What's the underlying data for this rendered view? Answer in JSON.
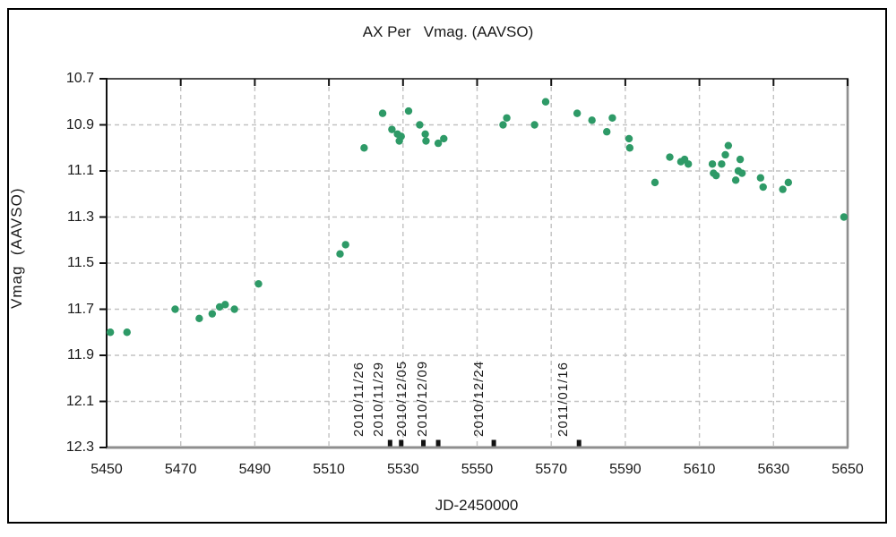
{
  "window": {
    "background": "#ffffff",
    "border_color": "#000000"
  },
  "title": "AX Per   Vmag. (AAVSO)",
  "chart_data": {
    "type": "scatter",
    "title": "AX Per   Vmag. (AAVSO)",
    "xlabel": "JD-2450000",
    "ylabel": "Vmag  (AAVSO)",
    "xlim": [
      5450,
      5650
    ],
    "ylim": [
      10.7,
      12.3
    ],
    "y_axis_inverted_magnitude": true,
    "xticks": [
      5450,
      5470,
      5490,
      5510,
      5530,
      5550,
      5570,
      5590,
      5610,
      5630,
      5650
    ],
    "yticks": [
      10.7,
      10.9,
      11.1,
      11.3,
      11.5,
      11.7,
      11.9,
      12.1,
      12.3
    ],
    "grid": "dashed",
    "grid_color": "#c2c2c2",
    "axis_color": "#111111",
    "axis_gray": "#8e8e8e",
    "marker_color": "#2E9A67",
    "legend": null,
    "points": [
      [
        5451.0,
        11.8
      ],
      [
        5455.5,
        11.8
      ],
      [
        5468.5,
        11.7
      ],
      [
        5475.0,
        11.74
      ],
      [
        5478.5,
        11.72
      ],
      [
        5480.5,
        11.69
      ],
      [
        5482.0,
        11.68
      ],
      [
        5484.5,
        11.7
      ],
      [
        5491.0,
        11.59
      ],
      [
        5513.0,
        11.46
      ],
      [
        5514.5,
        11.42
      ],
      [
        5519.5,
        11.0
      ],
      [
        5524.5,
        10.85
      ],
      [
        5527.0,
        10.92
      ],
      [
        5528.5,
        10.94
      ],
      [
        5529.0,
        10.97
      ],
      [
        5529.5,
        10.95
      ],
      [
        5531.5,
        10.84
      ],
      [
        5534.5,
        10.9
      ],
      [
        5536.0,
        10.94
      ],
      [
        5536.2,
        10.97
      ],
      [
        5539.5,
        10.98
      ],
      [
        5541.0,
        10.96
      ],
      [
        5557.0,
        10.9
      ],
      [
        5558.0,
        10.87
      ],
      [
        5565.5,
        10.9
      ],
      [
        5568.5,
        10.8
      ],
      [
        5577.0,
        10.85
      ],
      [
        5581.0,
        10.88
      ],
      [
        5585.0,
        10.93
      ],
      [
        5586.5,
        10.87
      ],
      [
        5591.0,
        10.96
      ],
      [
        5591.2,
        11.0
      ],
      [
        5598.0,
        11.15
      ],
      [
        5602.0,
        11.04
      ],
      [
        5605.0,
        11.06
      ],
      [
        5606.0,
        11.05
      ],
      [
        5607.0,
        11.07
      ],
      [
        5613.5,
        11.07
      ],
      [
        5613.8,
        11.11
      ],
      [
        5614.5,
        11.12
      ],
      [
        5616.0,
        11.07
      ],
      [
        5617.0,
        11.03
      ],
      [
        5617.8,
        10.99
      ],
      [
        5619.8,
        11.14
      ],
      [
        5620.5,
        11.1
      ],
      [
        5621.0,
        11.05
      ],
      [
        5621.5,
        11.11
      ],
      [
        5626.5,
        11.13
      ],
      [
        5627.2,
        11.17
      ],
      [
        5632.5,
        11.18
      ],
      [
        5634.0,
        11.15
      ],
      [
        5649.0,
        11.3
      ]
    ],
    "date_markers": [
      {
        "jd": 5526.5,
        "label": "2010/11/26"
      },
      {
        "jd": 5529.5,
        "label": "2010/11/29"
      },
      {
        "jd": 5535.5,
        "label": "2010/12/05"
      },
      {
        "jd": 5539.5,
        "label": "2010/12/09"
      },
      {
        "jd": 5554.5,
        "label": "2010/12/24"
      },
      {
        "jd": 5577.5,
        "label": "2011/01/16"
      }
    ]
  }
}
